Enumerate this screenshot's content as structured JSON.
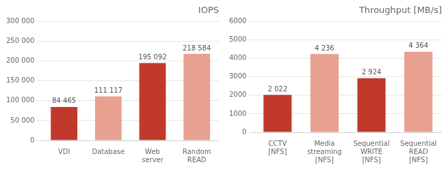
{
  "chart_data": [
    {
      "type": "bar",
      "title": "IOPS",
      "categories": [
        "VDI",
        "Database",
        "Web\nserver",
        "Random\nREAD"
      ],
      "values": [
        84465,
        111117,
        195092,
        218584
      ],
      "value_labels": [
        "84 465",
        "111 117",
        "195 092",
        "218 584"
      ],
      "colors": [
        "#c0392b",
        "#e8a090",
        "#c0392b",
        "#e8a090"
      ],
      "ylim": [
        0,
        300000
      ],
      "yticks": [
        0,
        {
          "value": 50000,
          "label": "50 000"
        },
        {
          "value": 100000,
          "label": "100 000"
        },
        {
          "value": 150000,
          "label": "150 000"
        },
        {
          "value": 200000,
          "label": "200 000"
        },
        {
          "value": 250000,
          "label": "250 000"
        },
        {
          "value": 300000,
          "label": "300 000"
        }
      ],
      "grid": true,
      "data_labels": true
    },
    {
      "type": "bar",
      "title": "Throughput [MB/s]",
      "categories": [
        "CCTV\n[NFS]",
        "Media\nstreaming\n[NFS]",
        "Sequential\nWRITE\n[NFS]",
        "Sequential\nREAD\n[NFS]"
      ],
      "values": [
        2022,
        4236,
        2924,
        4364
      ],
      "value_labels": [
        "2 022",
        "4 236",
        "2 924",
        "4 364"
      ],
      "colors": [
        "#c0392b",
        "#e8a090",
        "#c0392b",
        "#e8a090"
      ],
      "ylim": [
        0,
        6000
      ],
      "yticks": [
        0,
        1000,
        2000,
        3000,
        4000,
        5000,
        6000
      ],
      "grid": true,
      "data_labels": true
    }
  ]
}
